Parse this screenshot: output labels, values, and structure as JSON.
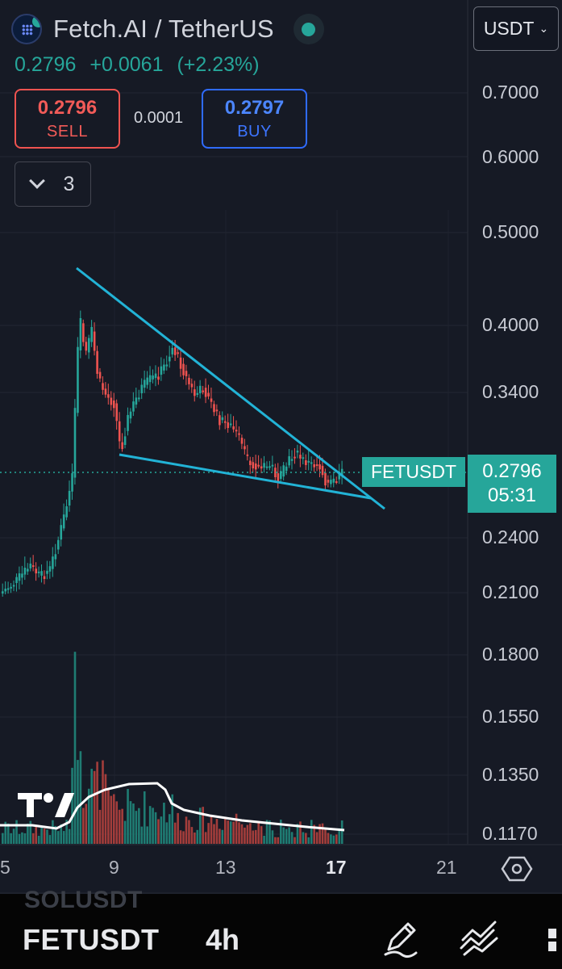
{
  "header": {
    "symbol_title": "Fetch.AI / TetherUS",
    "currency": "USDT",
    "last_price": "0.2796",
    "change_abs": "+0.0061",
    "change_pct": "(+2.23%)",
    "sell_price": "0.2796",
    "sell_label": "SELL",
    "buy_price": "0.2797",
    "buy_label": "BUY",
    "spread": "0.0001",
    "indicators_count": "3"
  },
  "chart": {
    "price_axis_labels": [
      "0.7000",
      "0.6000",
      "0.5000",
      "0.4000",
      "0.3400",
      "0.2400",
      "0.2100",
      "0.1800",
      "0.1550",
      "0.1350",
      "0.1170"
    ],
    "time_axis_labels": [
      "5",
      "9",
      "13",
      "17",
      "21"
    ],
    "highlighted_time_label": "17",
    "symbol_tag": "FETUSDT",
    "current_price": "0.2796",
    "countdown": "05:31",
    "log_scale": true,
    "colors": {
      "up": "#26a69a",
      "down": "#ef5350",
      "trendline": "#22b3d6",
      "background": "#161a25"
    }
  },
  "bottom_bar": {
    "ghost_symbol": "SOLUSDT",
    "symbol": "FETUSDT",
    "interval": "4h",
    "icons": [
      "pencil-icon",
      "line-tool-icon",
      "more-icon"
    ]
  }
}
